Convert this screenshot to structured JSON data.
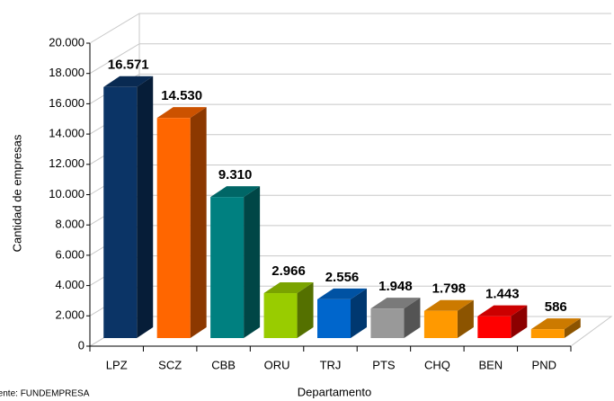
{
  "chart_data": {
    "type": "bar3d",
    "categories": [
      "LPZ",
      "SCZ",
      "CBB",
      "ORU",
      "TRJ",
      "PTS",
      "CHQ",
      "BEN",
      "PND"
    ],
    "values": [
      16571,
      14530,
      9310,
      2966,
      2556,
      1948,
      1798,
      1443,
      586
    ],
    "value_labels": [
      "16.571",
      "14.530",
      "9.310",
      "2.966",
      "2.556",
      "1.948",
      "1.798",
      "1.443",
      "586"
    ],
    "colors": [
      "#0b3466",
      "#ff6600",
      "#008080",
      "#99cc00",
      "#0066cc",
      "#999999",
      "#ff9900",
      "#ff0000",
      "#ff9900"
    ],
    "ylim": [
      0,
      20000
    ],
    "yticks": [
      0,
      {
        "value": 2000,
        "label": "2.000"
      },
      {
        "value": 4000,
        "label": "4.000"
      },
      {
        "value": 6000,
        "label": "6.000"
      },
      {
        "value": 8000,
        "label": "8.000"
      },
      {
        "value": 10000,
        "label": "10.000"
      },
      {
        "value": 12000,
        "label": "12.000"
      },
      {
        "value": 14000,
        "label": "14.000"
      },
      {
        "value": 16000,
        "label": "16.000"
      },
      {
        "value": 18000,
        "label": "18.000"
      },
      {
        "value": 20000,
        "label": "20.000"
      }
    ],
    "ylabel": "Cantidad de empresas",
    "xlabel": "Departamento",
    "source": "Fuente: FUNDEMPRESA",
    "grid": true
  }
}
